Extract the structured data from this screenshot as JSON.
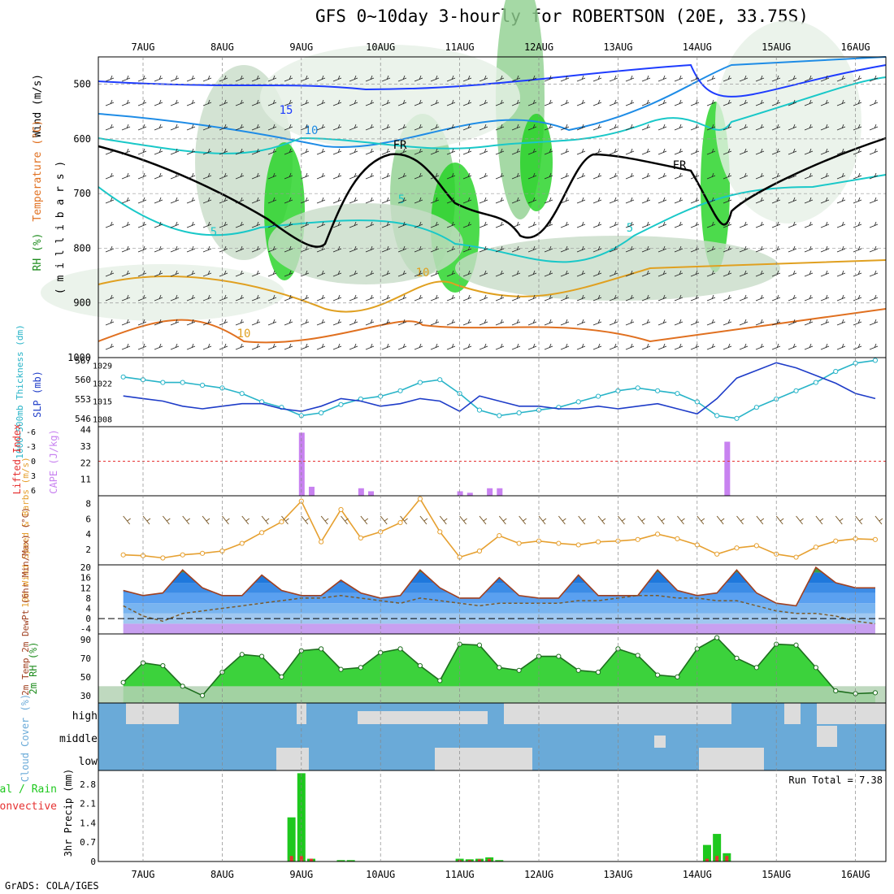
{
  "title": "GFS 0~10day 3-hourly for ROBERTSON (20E, 33.75S)",
  "credit": "GrADS: COLA/IGES",
  "colors": {
    "rh_dark": "#1fd21f",
    "rh_mid": "#8fcf8f",
    "rh_light": "#c8dcc8",
    "rh_pale": "#e6f0e6",
    "temp_warm": "#e0a020",
    "temp_hot": "#e07020",
    "temp_cold": "#19c8c8",
    "temp_cold2": "#1e8ce6",
    "temp_cold3": "#1e3cff",
    "temp_cold4": "#a020c8",
    "freezing": "#000000",
    "slp": "#1e3cc8",
    "thickness": "#28b4c8",
    "cape": "#c882f0",
    "lifted": "#e63232",
    "wind10": "#e6a030",
    "barb": "#7a5a2a",
    "temp2m": "#1e78e6",
    "dew": "#7a5a2a",
    "cloud_bg": "#6aaad8",
    "cloud_fill": "#dcdcdc",
    "precip_total": "#1ec81e",
    "precip_conv": "#e63232"
  },
  "xaxis": {
    "days": [
      "7AUG",
      "8AUG",
      "9AUG",
      "10AUG",
      "11AUG",
      "12AUG",
      "13AUG",
      "14AUG",
      "15AUG",
      "16AUG"
    ]
  },
  "panels": {
    "upper": {
      "ylabel_wind": "Wind (m/s)",
      "ylabel_temp": "Temperature (°C)",
      "ylabel_rh": "RH (%)",
      "ylabel_mb": "( m i l l i b a r s )",
      "yticks": [
        "500",
        "600",
        "700",
        "800",
        "900",
        "1000"
      ],
      "contour_labels": [
        "15",
        "10",
        "5",
        "5",
        "5",
        "10",
        "10",
        "FR",
        "FR"
      ]
    },
    "slp": {
      "ylabel_left": "1000~500mb Thickness (dm)",
      "ylabel_right": "SLP (mb)",
      "left_ticks": [
        "567",
        "560",
        "553",
        "546"
      ],
      "right_ticks": [
        "1029",
        "1022",
        "1015",
        "1008"
      ]
    },
    "cape": {
      "ylabel_left": "Lifted Index",
      "ylabel_right": "CAPE (J/kg)",
      "left_ticks": [
        "-6",
        "-3",
        "0",
        "3",
        "6"
      ],
      "right_ticks": [
        "44",
        "33",
        "22",
        "11"
      ]
    },
    "wind10": {
      "ylabel": "10m Wind Speed & Barbs (m/s)",
      "yticks": [
        "8",
        "6",
        "4",
        "2"
      ]
    },
    "temp2m": {
      "ylabel": "2m Temp 2m DewPt (6hr Min/Max) (°C)",
      "yticks": [
        "20",
        "16",
        "12",
        "8",
        "4",
        "0",
        "-4"
      ]
    },
    "rh2m": {
      "ylabel": "2m RH (%)",
      "yticks": [
        "90",
        "70",
        "50",
        "30"
      ]
    },
    "cloud": {
      "ylabel": "Cloud Cover (%)",
      "levels": [
        "high",
        "middle",
        "low"
      ]
    },
    "precip": {
      "ylabel": "3hr Precip (mm)",
      "legend_total": "Total / Rain",
      "legend_conv": "Convective",
      "run_total": "Run Total = 7.38",
      "yticks": [
        "2.8",
        "2.1",
        "1.4",
        "0.7",
        "0"
      ]
    }
  },
  "chart_data": [
    {
      "type": "line",
      "title": "1000~500mb Thickness / SLP",
      "x": [
        "6AUG18",
        "7AUG00",
        "7AUG06",
        "7AUG12",
        "7AUG18",
        "8AUG00",
        "8AUG06",
        "8AUG12",
        "8AUG18",
        "9AUG00",
        "9AUG06",
        "9AUG12",
        "9AUG18",
        "10AUG00",
        "10AUG06",
        "10AUG12",
        "10AUG18",
        "11AUG00",
        "11AUG06",
        "11AUG12",
        "11AUG18",
        "12AUG00",
        "12AUG06",
        "12AUG12",
        "12AUG18",
        "13AUG00",
        "13AUG06",
        "13AUG12",
        "13AUG18",
        "14AUG00",
        "14AUG06",
        "14AUG12",
        "14AUG18",
        "15AUG00",
        "15AUG06",
        "15AUG12",
        "15AUG18",
        "16AUG00",
        "16AUG06"
      ],
      "series": [
        {
          "name": "Thickness",
          "values": [
            561,
            560,
            559,
            559,
            558,
            557,
            555,
            552,
            550,
            547,
            548,
            551,
            553,
            554,
            556,
            559,
            560,
            555,
            549,
            547,
            548,
            549,
            550,
            552,
            554,
            556,
            557,
            556,
            555,
            552,
            547,
            546,
            550,
            553,
            556,
            559,
            563,
            566,
            567
          ]
        },
        {
          "name": "SLP",
          "values": [
            1017,
            1016,
            1015,
            1013,
            1012,
            1013,
            1014,
            1014,
            1012,
            1011,
            1013,
            1016,
            1015,
            1013,
            1014,
            1016,
            1015,
            1011,
            1017,
            1015,
            1013,
            1013,
            1012,
            1012,
            1013,
            1012,
            1013,
            1014,
            1012,
            1010,
            1016,
            1024,
            1027,
            1030,
            1028,
            1025,
            1022,
            1018,
            1016
          ]
        }
      ],
      "ylim_left": [
        543,
        568
      ],
      "ylim_right": [
        1005,
        1032
      ]
    },
    {
      "type": "bar",
      "title": "CAPE / Lifted Index",
      "categories": [
        "9AUG00",
        "9AUG03",
        "9AUG18",
        "9AUG21",
        "11AUG00",
        "11AUG03",
        "11AUG09",
        "11AUG12",
        "14AUG09"
      ],
      "series": [
        {
          "name": "CAPE",
          "values": [
            42,
            6,
            5,
            3,
            3,
            2,
            5,
            5,
            36
          ]
        }
      ],
      "ylim": [
        0,
        46
      ]
    },
    {
      "type": "line",
      "title": "10m Wind Speed",
      "x": [
        "6AUG18",
        "7AUG00",
        "7AUG06",
        "7AUG12",
        "7AUG18",
        "8AUG00",
        "8AUG06",
        "8AUG12",
        "8AUG18",
        "9AUG00",
        "9AUG06",
        "9AUG12",
        "9AUG18",
        "10AUG00",
        "10AUG06",
        "10AUG12",
        "10AUG18",
        "11AUG00",
        "11AUG06",
        "11AUG12",
        "11AUG18",
        "12AUG00",
        "12AUG06",
        "12AUG12",
        "12AUG18",
        "13AUG00",
        "13AUG06",
        "13AUG12",
        "13AUG18",
        "14AUG00",
        "14AUG06",
        "14AUG12",
        "14AUG18",
        "15AUG00",
        "15AUG06",
        "15AUG12",
        "15AUG18",
        "16AUG00",
        "16AUG06"
      ],
      "series": [
        {
          "name": "Speed",
          "values": [
            1.3,
            1.2,
            0.9,
            1.3,
            1.5,
            1.8,
            2.8,
            4.2,
            5.6,
            8.3,
            3.0,
            7.2,
            3.5,
            4.3,
            5.5,
            8.6,
            4.3,
            1.0,
            1.8,
            3.8,
            2.8,
            3.1,
            2.8,
            2.6,
            3.0,
            3.1,
            3.3,
            4.0,
            3.4,
            2.6,
            1.4,
            2.2,
            2.5,
            1.4,
            1.0,
            2.3,
            3.1,
            3.4,
            3.3
          ]
        }
      ],
      "ylim": [
        0,
        9
      ]
    },
    {
      "type": "area",
      "title": "2m Temp / DewPt",
      "x": [
        "6AUG18",
        "7AUG00",
        "7AUG06",
        "7AUG12",
        "7AUG18",
        "8AUG00",
        "8AUG06",
        "8AUG12",
        "8AUG18",
        "9AUG00",
        "9AUG06",
        "9AUG12",
        "9AUG18",
        "10AUG00",
        "10AUG06",
        "10AUG12",
        "10AUG18",
        "11AUG00",
        "11AUG06",
        "11AUG12",
        "11AUG18",
        "12AUG00",
        "12AUG06",
        "12AUG12",
        "12AUG18",
        "13AUG00",
        "13AUG06",
        "13AUG12",
        "13AUG18",
        "14AUG00",
        "14AUG06",
        "14AUG12",
        "14AUG18",
        "15AUG00",
        "15AUG06",
        "15AUG12",
        "15AUG18",
        "16AUG00",
        "16AUG06"
      ],
      "series": [
        {
          "name": "Temp",
          "values": [
            11,
            9,
            10,
            19,
            12,
            9,
            9,
            17,
            11,
            9,
            9,
            15,
            10,
            8,
            9,
            19,
            12,
            8,
            8,
            16,
            9,
            8,
            8,
            17,
            9,
            9,
            9,
            19,
            11,
            9,
            10,
            19,
            10,
            6,
            5,
            20,
            14,
            12,
            12
          ]
        },
        {
          "name": "DewPt",
          "values": [
            5,
            1,
            -1,
            2,
            3,
            4,
            5,
            6,
            7,
            8,
            8,
            9,
            8,
            7,
            6,
            8,
            7,
            6,
            5,
            6,
            6,
            6,
            6,
            7,
            7,
            8,
            9,
            9,
            8,
            8,
            7,
            7,
            5,
            3,
            2,
            2,
            1,
            -1,
            -2
          ]
        }
      ],
      "ylim": [
        -6,
        21
      ]
    },
    {
      "type": "area",
      "title": "2m RH",
      "x": [
        "6AUG18",
        "7AUG00",
        "7AUG06",
        "7AUG12",
        "7AUG18",
        "8AUG00",
        "8AUG06",
        "8AUG12",
        "8AUG18",
        "9AUG00",
        "9AUG06",
        "9AUG12",
        "9AUG18",
        "10AUG00",
        "10AUG06",
        "10AUG12",
        "10AUG18",
        "11AUG00",
        "11AUG06",
        "11AUG12",
        "11AUG18",
        "12AUG00",
        "12AUG06",
        "12AUG12",
        "12AUG18",
        "13AUG00",
        "13AUG06",
        "13AUG12",
        "13AUG18",
        "14AUG00",
        "14AUG06",
        "14AUG12",
        "14AUG18",
        "15AUG00",
        "15AUG06",
        "15AUG12",
        "15AUG18",
        "16AUG00",
        "16AUG06"
      ],
      "series": [
        {
          "name": "RH",
          "values": [
            44,
            65,
            62,
            40,
            30,
            55,
            74,
            72,
            50,
            78,
            80,
            58,
            60,
            76,
            80,
            62,
            46,
            85,
            84,
            60,
            57,
            72,
            72,
            57,
            55,
            80,
            73,
            52,
            50,
            80,
            92,
            70,
            60,
            85,
            84,
            60,
            35,
            32,
            33
          ]
        }
      ],
      "ylim": [
        22,
        96
      ]
    },
    {
      "type": "bar",
      "title": "3hr Precip",
      "categories": [
        "8AUG21",
        "9AUG00",
        "9AUG03",
        "9AUG12",
        "9AUG15",
        "11AUG00",
        "11AUG03",
        "11AUG06",
        "11AUG09",
        "11AUG12",
        "14AUG03",
        "14AUG06",
        "14AUG09"
      ],
      "series": [
        {
          "name": "Total",
          "values": [
            1.6,
            3.2,
            0.1,
            0.05,
            0.05,
            0.1,
            0.08,
            0.1,
            0.15,
            0.05,
            0.6,
            1.0,
            0.3
          ]
        },
        {
          "name": "Convective",
          "values": [
            0.2,
            0.2,
            0.1,
            0.02,
            0.02,
            0.05,
            0.05,
            0.08,
            0.1,
            0.02,
            0.1,
            0.2,
            0.2
          ]
        }
      ],
      "ylim": [
        0,
        3.3
      ]
    }
  ]
}
